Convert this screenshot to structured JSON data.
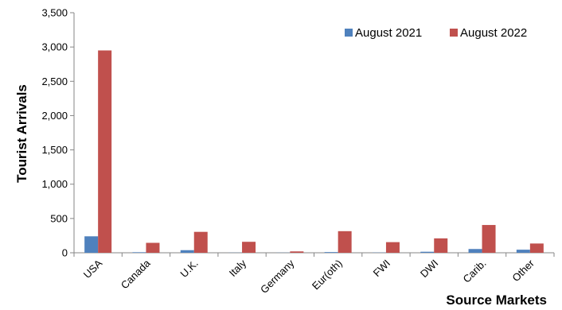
{
  "chart_data": {
    "type": "bar",
    "title": "",
    "xlabel": "Source Markets",
    "ylabel": "Tourist Arrivals",
    "ylim": [
      0,
      3500
    ],
    "yticks": [
      0,
      500,
      1000,
      1500,
      2000,
      2500,
      3000,
      3500
    ],
    "ytick_labels": [
      "0",
      "500",
      "1,000",
      "1,500",
      "2,000",
      "2,500",
      "3,000",
      "3,500"
    ],
    "grid": false,
    "legend_position": "top-right",
    "categories": [
      "USA",
      "Canada",
      "U.K.",
      "Italy",
      "Germany",
      "Eur(oth)",
      "FWI",
      "DWI",
      "Carib.",
      "Other"
    ],
    "series": [
      {
        "name": "August 2021",
        "color": "#4F81BD",
        "values": [
          240,
          8,
          38,
          2,
          2,
          10,
          3,
          15,
          55,
          45
        ]
      },
      {
        "name": "August 2022",
        "color": "#C0504D",
        "values": [
          2950,
          145,
          305,
          160,
          20,
          315,
          155,
          210,
          405,
          135
        ]
      }
    ]
  }
}
